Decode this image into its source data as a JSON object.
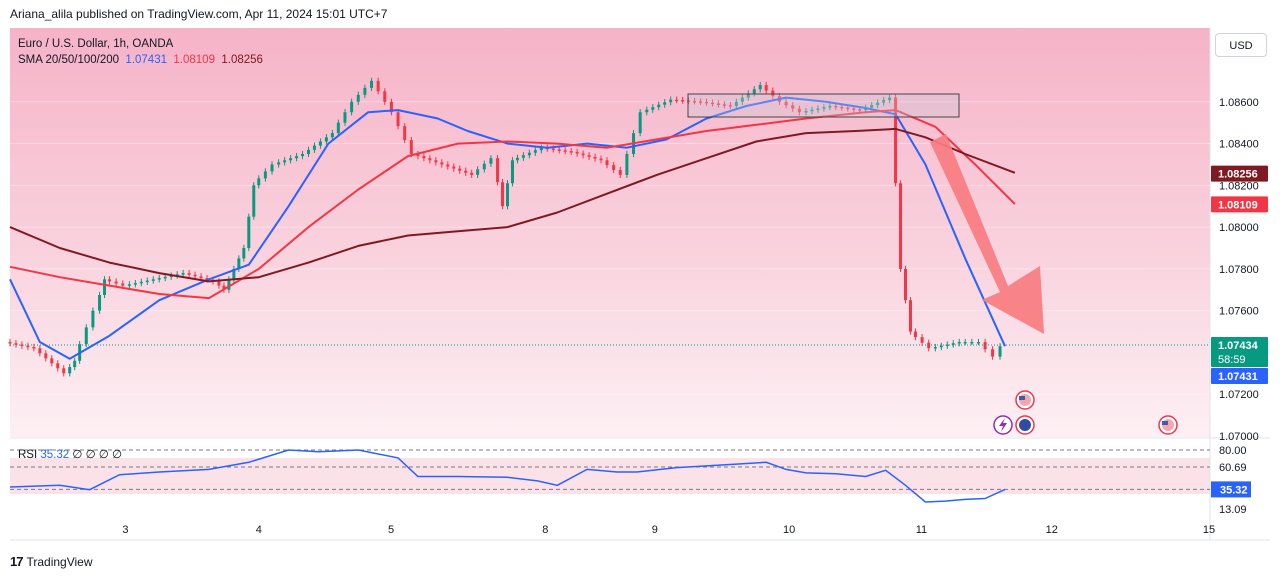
{
  "publisher_line": "Ariana_alila published on TradingView.com, Apr 11, 2024 15:01 UTC+7",
  "legend": {
    "symbol": "Euro / U.S. Dollar, 1h, OANDA",
    "sma_label": "SMA 20/50/100/200",
    "sma20": "1.07431",
    "sma50": "1.08109",
    "sma100": "1.08256"
  },
  "currency_button": "USD",
  "rsi_legend": {
    "label": "RSI",
    "value": "35.32",
    "extra": "∅ ∅ ∅ ∅"
  },
  "brand": "TradingView",
  "colors": {
    "sma20": "#2962ff",
    "sma50": "#f23645",
    "sma100": "#801922",
    "up": "#089981",
    "down": "#f23645",
    "arrow": "#f77c80"
  },
  "chart_data": {
    "type": "line",
    "title": "Euro / U.S. Dollar, 1h, OANDA",
    "x_ticks": [
      "3",
      "4",
      "5",
      "8",
      "9",
      "10",
      "11",
      "12",
      "15"
    ],
    "price_ticks": [
      "1.08600",
      "1.08400",
      "1.08200",
      "1.08000",
      "1.07800",
      "1.07600",
      "1.07200",
      "1.07000"
    ],
    "price_badges": [
      {
        "label": "1.08256",
        "series": "SMA 100",
        "color": "#801922"
      },
      {
        "label": "1.08109",
        "series": "SMA 50",
        "color": "#f23645"
      },
      {
        "label": "1.07434",
        "sub": "58:59",
        "series": "price",
        "color": "#089981"
      },
      {
        "label": "1.07431",
        "series": "SMA 20",
        "color": "#2962ff"
      }
    ],
    "ylim": [
      1.07,
      1.088
    ],
    "last_price": 1.07434,
    "series": [
      {
        "name": "SMA 20",
        "color": "#2962ff",
        "points": [
          [
            0,
            1.0775
          ],
          [
            0.3,
            1.0745
          ],
          [
            0.6,
            1.0737
          ],
          [
            1,
            1.0748
          ],
          [
            1.5,
            1.0765
          ],
          [
            2,
            1.0775
          ],
          [
            2.4,
            1.0782
          ],
          [
            2.8,
            1.081
          ],
          [
            3.2,
            1.084
          ],
          [
            3.6,
            1.0855
          ],
          [
            3.9,
            1.0856
          ],
          [
            4.3,
            1.0852
          ],
          [
            4.6,
            1.0846
          ],
          [
            5.0,
            1.084
          ],
          [
            5.4,
            1.0838
          ],
          [
            5.8,
            1.084
          ],
          [
            6.2,
            1.0838
          ],
          [
            6.6,
            1.0842
          ],
          [
            7.0,
            1.0852
          ],
          [
            7.4,
            1.0858
          ],
          [
            7.8,
            1.0862
          ],
          [
            8.2,
            1.086
          ],
          [
            8.6,
            1.0857
          ],
          [
            8.9,
            1.0854
          ],
          [
            9.2,
            1.083
          ],
          [
            9.6,
            1.0785
          ],
          [
            10.0,
            1.0743
          ]
        ]
      },
      {
        "name": "SMA 50",
        "color": "#f23645",
        "points": [
          [
            0,
            1.0781
          ],
          [
            0.5,
            1.0776
          ],
          [
            1,
            1.0772
          ],
          [
            1.5,
            1.0768
          ],
          [
            2,
            1.0766
          ],
          [
            2.5,
            1.078
          ],
          [
            3,
            1.08
          ],
          [
            3.5,
            1.0818
          ],
          [
            4,
            1.0834
          ],
          [
            4.5,
            1.084
          ],
          [
            5,
            1.0841
          ],
          [
            5.5,
            1.084
          ],
          [
            6,
            1.0838
          ],
          [
            6.5,
            1.0842
          ],
          [
            7,
            1.0846
          ],
          [
            7.5,
            1.0849
          ],
          [
            8,
            1.0852
          ],
          [
            8.6,
            1.0855
          ],
          [
            8.9,
            1.0856
          ],
          [
            9.3,
            1.0848
          ],
          [
            9.7,
            1.083
          ],
          [
            10.1,
            1.0811
          ]
        ]
      },
      {
        "name": "SMA 100",
        "color": "#801922",
        "points": [
          [
            0,
            1.08
          ],
          [
            0.5,
            1.079
          ],
          [
            1,
            1.0783
          ],
          [
            1.5,
            1.0778
          ],
          [
            2,
            1.0774
          ],
          [
            2.5,
            1.0776
          ],
          [
            3,
            1.0783
          ],
          [
            3.5,
            1.0791
          ],
          [
            4,
            1.0796
          ],
          [
            4.5,
            1.0798
          ],
          [
            5,
            1.08
          ],
          [
            5.5,
            1.0807
          ],
          [
            6,
            1.0816
          ],
          [
            6.5,
            1.0825
          ],
          [
            7,
            1.0833
          ],
          [
            7.5,
            1.0841
          ],
          [
            8,
            1.0845
          ],
          [
            8.5,
            1.0846
          ],
          [
            8.9,
            1.0847
          ],
          [
            9.2,
            1.0843
          ],
          [
            9.6,
            1.0835
          ],
          [
            10.1,
            1.0826
          ]
        ]
      }
    ],
    "annotation": {
      "type": "rectangle",
      "label": "",
      "from": [
        6.7,
        1.0861
      ],
      "to": [
        9.4,
        1.0855
      ]
    },
    "rsi": {
      "label": "RSI",
      "value": 35.32,
      "levels": [
        80.0,
        60.69,
        35.32,
        13.09
      ],
      "level_labels": [
        "80.00",
        "60.69",
        "35.32",
        "13.09"
      ],
      "points": [
        [
          0,
          38
        ],
        [
          0.5,
          40
        ],
        [
          0.8,
          35
        ],
        [
          1.1,
          52
        ],
        [
          1.5,
          55
        ],
        [
          2,
          58
        ],
        [
          2.4,
          66
        ],
        [
          2.8,
          80
        ],
        [
          3.1,
          78
        ],
        [
          3.5,
          80
        ],
        [
          3.9,
          71
        ],
        [
          4.1,
          50
        ],
        [
          4.5,
          50
        ],
        [
          5,
          49
        ],
        [
          5.3,
          45
        ],
        [
          5.5,
          40
        ],
        [
          5.8,
          58
        ],
        [
          6.1,
          55
        ],
        [
          6.3,
          55
        ],
        [
          6.7,
          60
        ],
        [
          7,
          62
        ],
        [
          7.3,
          64
        ],
        [
          7.6,
          66
        ],
        [
          7.8,
          58
        ],
        [
          8,
          54
        ],
        [
          8.3,
          53
        ],
        [
          8.6,
          50
        ],
        [
          8.8,
          57
        ],
        [
          9,
          40
        ],
        [
          9.2,
          21
        ],
        [
          9.4,
          22
        ],
        [
          9.6,
          24
        ],
        [
          9.8,
          25
        ],
        [
          10.0,
          35.3
        ]
      ]
    }
  }
}
